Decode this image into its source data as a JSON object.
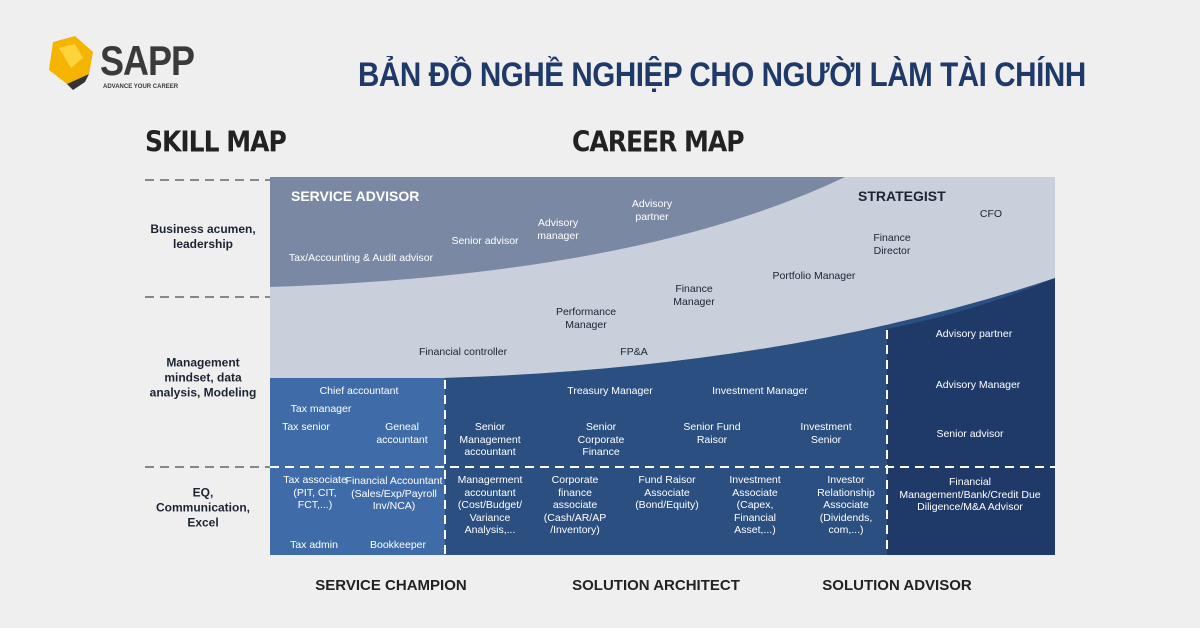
{
  "logo": {
    "name": "SAPP",
    "tagline": "ADVANCE YOUR CAREER",
    "brand_color": "#f5b400"
  },
  "title": "BẢN ĐỒ NGHỀ NGHIỆP CHO NGƯỜI LÀM TÀI CHÍNH",
  "title_color": "#1f3a68",
  "skill_map": {
    "heading": "SKILL MAP",
    "levels": [
      "Business acumen, leadership",
      "Management mindset, data analysis, Modeling",
      "EQ, Communication, Excel"
    ]
  },
  "career_map": {
    "heading": "CAREER MAP",
    "zones": {
      "service_advisor": "SERVICE ADVISOR",
      "strategist": "STRATEGIST"
    },
    "top_roles": [
      "Tax/Accounting & Audit advisor",
      "Senior advisor",
      "Advisory manager",
      "Advisory partner",
      "CFO",
      "Finance Director",
      "Portfolio Manager"
    ],
    "middle_roles": [
      "Financial controller",
      "Performance Manager",
      "FP&A",
      "Finance Manager"
    ],
    "service_champion_roles": [
      "Chief accountant",
      "Tax manager",
      "Tax senior",
      "Geneal accountant",
      "Tax associate (PIT, CIT, FCT,...)",
      "Financial Accountant (Sales/Exp/Payroll Inv/NCA)",
      "Tax admin",
      "Bookkeeper"
    ],
    "solution_architect_roles": [
      "Treasury Manager",
      "Investment Manager",
      "Senior Management accountant",
      "Senior Corporate Finance",
      "Senior Fund Raisor",
      "Investment Senior",
      "Managerment accountant (Cost/Budget/ Variance Analysis,...",
      "Corporate finance associate (Cash/AR/AP /Inventory)",
      "Fund Raisor Associate (Bond/Equity)",
      "Investment Associate (Capex, Financial Asset,...)",
      "Investor Relationship Associate (Dividends, com,...)"
    ],
    "solution_advisor_roles": [
      "Advisory partner",
      "Advisory Manager",
      "Senior advisor",
      "Financial Management/Bank/Credit Due Diligence/M&A Advisor"
    ],
    "columns": [
      "SERVICE CHAMPION",
      "SOLUTION ARCHITECT",
      "SOLUTION ADVISOR"
    ]
  },
  "colors": {
    "top_zone": "#7b88a4",
    "middle_zone": "#c9d0dc",
    "service_champion": "#3f6ca8",
    "solution_architect": "#2b4f80",
    "solution_advisor": "#1f3a68"
  }
}
